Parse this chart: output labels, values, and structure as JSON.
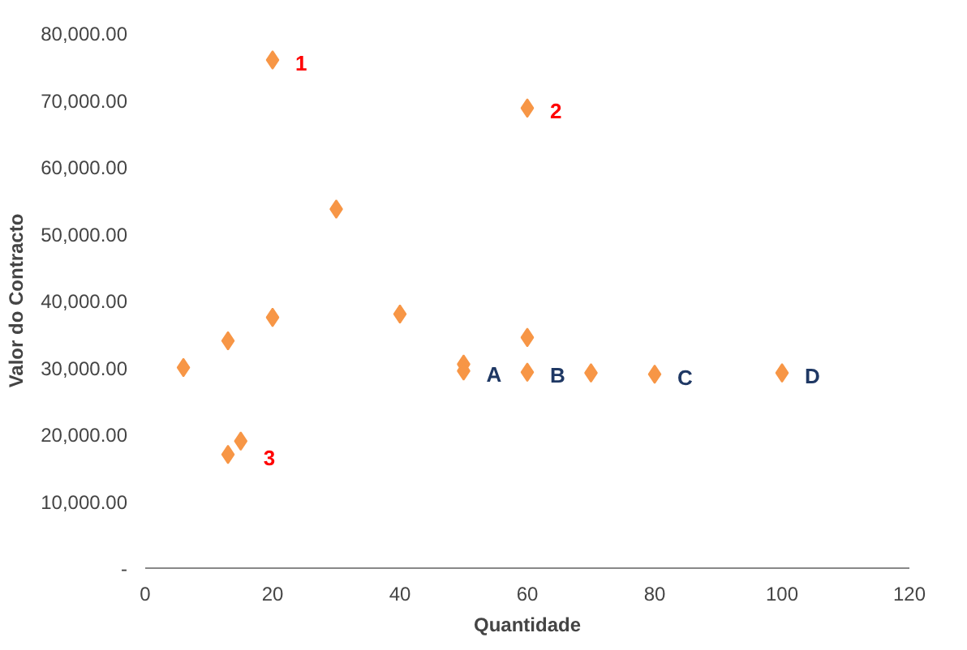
{
  "chart_data": {
    "type": "scatter",
    "xlabel": "Quantidade",
    "ylabel": "Valor do Contracto",
    "x": [
      6,
      13,
      13,
      15,
      20,
      20,
      30,
      40,
      50,
      50,
      60,
      60,
      60,
      70,
      80,
      100
    ],
    "series": [
      {
        "color": "#f79646",
        "values": [
          30000,
          34000,
          17000,
          19000,
          76000,
          37500,
          53700,
          38000,
          30500,
          29500,
          68800,
          34500,
          29300,
          29200,
          29000,
          29200
        ]
      }
    ],
    "xlim": [
      0,
      120
    ],
    "xticks": [
      0,
      20,
      40,
      60,
      80,
      100,
      120
    ],
    "ylim": [
      0,
      80000
    ],
    "yticks": [
      {
        "value": 0,
        "label": "-"
      },
      {
        "value": 10000,
        "label": "10,000.00"
      },
      {
        "value": 20000,
        "label": "20,000.00"
      },
      {
        "value": 30000,
        "label": "30,000.00"
      },
      {
        "value": 40000,
        "label": "40,000.00"
      },
      {
        "value": 50000,
        "label": "50,000.00"
      },
      {
        "value": 60000,
        "label": "60,000.00"
      },
      {
        "value": 70000,
        "label": "70,000.00"
      },
      {
        "value": 80000,
        "label": "80,000.00"
      }
    ],
    "grid": false,
    "marker": "diamond",
    "annotations": [
      {
        "text": "1",
        "x": 20,
        "y": 76000
      },
      {
        "text": "2",
        "x": 60,
        "y": 68800
      },
      {
        "text": "3",
        "x": 15,
        "y": 17000
      },
      {
        "text": "A",
        "x": 50,
        "y": 29500
      },
      {
        "text": "B",
        "x": 60,
        "y": 29300
      },
      {
        "text": "C",
        "x": 80,
        "y": 29000
      },
      {
        "text": "D",
        "x": 100,
        "y": 29200
      }
    ]
  }
}
